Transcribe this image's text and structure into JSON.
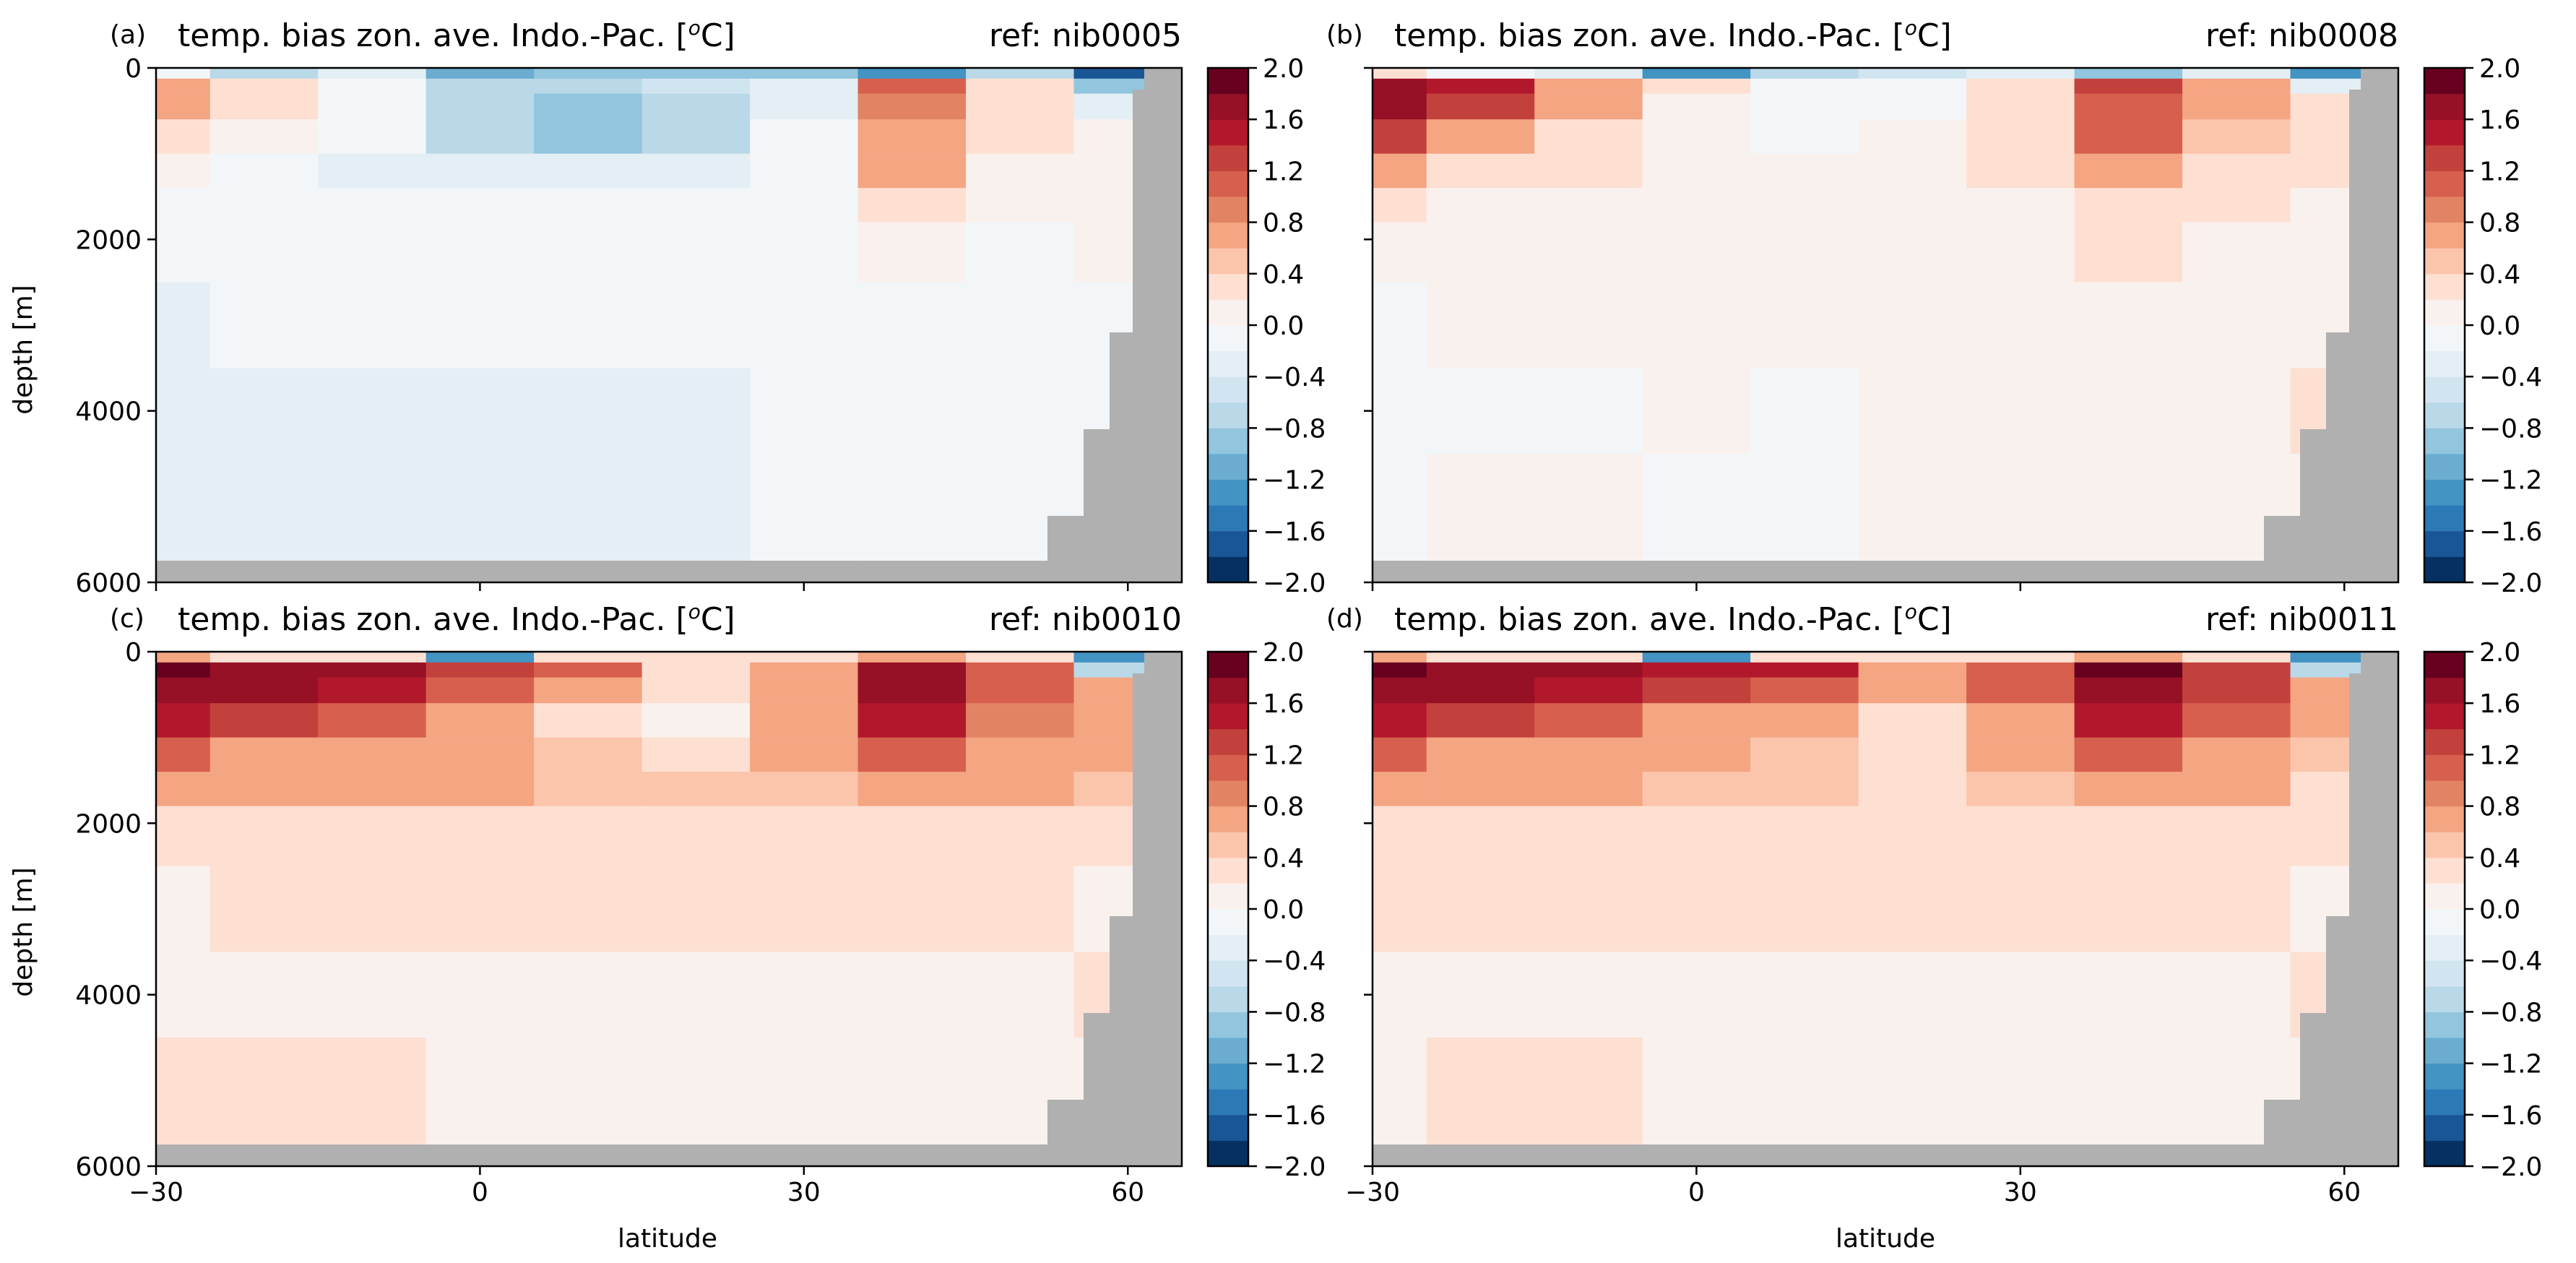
{
  "figure": {
    "ylabel": "depth [m]",
    "xlabel": "latitude"
  },
  "chart_data": [
    {
      "type": "heatmap",
      "panel_label": "(a)",
      "title": "temp. bias zon. ave. Indo.-Pac. [$^o$C]",
      "title_main": "temp. bias zon. ave. Indo.-Pac. [",
      "title_sup": "o",
      "title_end": "C]",
      "ref_text": "ref: nib0005",
      "xlim": [
        -30,
        65
      ],
      "ylim": [
        6000,
        0
      ],
      "xticks": [
        -30,
        0,
        30,
        60
      ],
      "yticks": [
        0,
        2000,
        4000,
        6000
      ],
      "colorbar_ticks": [
        "2.0",
        "1.6",
        "1.2",
        "0.8",
        "0.4",
        "0.0",
        "-0.4",
        "-0.8",
        "-1.2",
        "-1.6",
        "-2.0"
      ],
      "depth_levels": [
        50,
        200,
        400,
        800,
        1200,
        1600,
        2000,
        3000,
        4000,
        5000
      ],
      "lat_bins": [
        -30,
        -20,
        -10,
        0,
        10,
        20,
        30,
        40,
        50,
        60
      ],
      "values": [
        [
          -0.2,
          -0.6,
          -0.4,
          -1.2,
          -0.8,
          -1.0,
          -0.8,
          -1.4,
          -0.6,
          -1.6
        ],
        [
          0.8,
          0.4,
          -0.2,
          -0.6,
          -0.6,
          -0.5,
          -0.4,
          1.0,
          0.2,
          -0.8
        ],
        [
          0.6,
          0.3,
          -0.2,
          -0.6,
          -0.8,
          -0.6,
          -0.3,
          0.9,
          0.2,
          -0.3
        ],
        [
          0.3,
          0.0,
          -0.2,
          -0.6,
          -0.8,
          -0.6,
          -0.2,
          0.8,
          0.2,
          0.1
        ],
        [
          0.1,
          -0.2,
          -0.3,
          -0.4,
          -0.4,
          -0.4,
          -0.2,
          0.6,
          0.1,
          0.1
        ],
        [
          -0.1,
          -0.2,
          -0.2,
          -0.2,
          -0.2,
          -0.2,
          -0.1,
          0.3,
          0.1,
          0.1
        ],
        [
          -0.2,
          -0.1,
          -0.1,
          -0.1,
          -0.1,
          -0.1,
          -0.1,
          0.1,
          -0.1,
          0.0
        ],
        [
          -0.3,
          -0.2,
          -0.1,
          -0.1,
          -0.1,
          -0.1,
          -0.1,
          -0.1,
          -0.1,
          -0.1
        ],
        [
          -0.4,
          -0.4,
          -0.3,
          -0.3,
          -0.3,
          -0.3,
          -0.2,
          -0.2,
          -0.2,
          -0.1
        ],
        [
          -0.4,
          -0.3,
          -0.3,
          -0.4,
          -0.3,
          -0.3,
          -0.2,
          -0.2,
          -0.2,
          -0.2
        ]
      ]
    },
    {
      "type": "heatmap",
      "panel_label": "(b)",
      "title": "temp. bias zon. ave. Indo.-Pac. [$^o$C]",
      "title_main": "temp. bias zon. ave. Indo.-Pac. [",
      "title_sup": "o",
      "title_end": "C]",
      "ref_text": "ref: nib0008",
      "xlim": [
        -30,
        65
      ],
      "ylim": [
        6000,
        0
      ],
      "xticks": [
        -30,
        0,
        30,
        60
      ],
      "yticks": [
        0,
        2000,
        4000,
        6000
      ],
      "colorbar_ticks": [
        "2.0",
        "1.6",
        "1.2",
        "0.8",
        "0.4",
        "0.0",
        "-0.4",
        "-0.8",
        "-1.2",
        "-1.6",
        "-2.0"
      ],
      "depth_levels": [
        50,
        200,
        400,
        800,
        1200,
        1600,
        2000,
        3000,
        4000,
        5000
      ],
      "lat_bins": [
        -30,
        -20,
        -10,
        0,
        10,
        20,
        30,
        40,
        50,
        60
      ],
      "values": [
        [
          0.4,
          -0.2,
          -0.4,
          -1.4,
          -0.6,
          -0.5,
          -0.4,
          -0.8,
          -0.3,
          -1.4
        ],
        [
          1.8,
          1.4,
          0.8,
          0.2,
          -0.1,
          -0.1,
          0.2,
          1.2,
          0.6,
          -0.4
        ],
        [
          1.6,
          1.2,
          0.6,
          0.1,
          -0.2,
          -0.1,
          0.3,
          1.1,
          0.6,
          0.2
        ],
        [
          1.2,
          0.8,
          0.4,
          0.1,
          -0.1,
          0.0,
          0.3,
          1.0,
          0.5,
          0.3
        ],
        [
          0.6,
          0.3,
          0.2,
          0.1,
          0.0,
          0.1,
          0.2,
          0.8,
          0.4,
          0.2
        ],
        [
          0.3,
          0.1,
          0.1,
          0.1,
          0.1,
          0.1,
          0.1,
          0.4,
          0.2,
          0.1
        ],
        [
          0.1,
          0.1,
          0.1,
          0.1,
          0.1,
          0.1,
          0.1,
          0.2,
          0.1,
          0.1
        ],
        [
          -0.1,
          0.0,
          0.1,
          0.1,
          0.1,
          0.1,
          0.1,
          0.1,
          0.1,
          0.1
        ],
        [
          -0.1,
          -0.1,
          -0.1,
          0.0,
          -0.1,
          0.0,
          0.1,
          0.1,
          0.1,
          0.2
        ],
        [
          -0.1,
          0.1,
          0.1,
          -0.1,
          -0.1,
          0.0,
          0.0,
          0.0,
          0.1,
          0.1
        ]
      ]
    },
    {
      "type": "heatmap",
      "panel_label": "(c)",
      "title": "temp. bias zon. ave. Indo.-Pac. [$^o$C]",
      "title_main": "temp. bias zon. ave. Indo.-Pac. [",
      "title_sup": "o",
      "title_end": "C]",
      "ref_text": "ref: nib0010",
      "xlim": [
        -30,
        65
      ],
      "ylim": [
        6000,
        0
      ],
      "xticks": [
        -30,
        0,
        30,
        60
      ],
      "yticks": [
        0,
        2000,
        4000,
        6000
      ],
      "colorbar_ticks": [
        "2.0",
        "1.6",
        "1.2",
        "0.8",
        "0.4",
        "0.0",
        "-0.4",
        "-0.8",
        "-1.2",
        "-1.6",
        "-2.0"
      ],
      "depth_levels": [
        50,
        200,
        400,
        800,
        1200,
        1600,
        2000,
        3000,
        4000,
        5000
      ],
      "lat_bins": [
        -30,
        -20,
        -10,
        0,
        10,
        20,
        30,
        40,
        50,
        60
      ],
      "values": [
        [
          0.6,
          0.4,
          0.2,
          -1.4,
          0.4,
          0.2,
          0.2,
          0.6,
          0.4,
          -1.4
        ],
        [
          2.0,
          1.8,
          1.6,
          1.2,
          1.0,
          0.4,
          0.8,
          1.8,
          1.0,
          -0.6
        ],
        [
          1.8,
          1.6,
          1.4,
          1.0,
          0.6,
          0.2,
          0.8,
          1.8,
          1.0,
          0.6
        ],
        [
          1.4,
          1.2,
          1.0,
          0.8,
          0.4,
          0.0,
          0.7,
          1.4,
          0.9,
          0.6
        ],
        [
          1.0,
          0.8,
          0.8,
          0.7,
          0.5,
          0.4,
          0.6,
          1.0,
          0.7,
          0.6
        ],
        [
          0.7,
          0.7,
          0.6,
          0.6,
          0.5,
          0.5,
          0.5,
          0.7,
          0.6,
          0.5
        ],
        [
          0.4,
          0.4,
          0.4,
          0.4,
          0.4,
          0.4,
          0.4,
          0.4,
          0.4,
          0.3
        ],
        [
          0.1,
          0.2,
          0.2,
          0.2,
          0.2,
          0.2,
          0.2,
          0.2,
          0.2,
          0.1
        ],
        [
          0.1,
          0.1,
          0.1,
          0.1,
          0.1,
          0.1,
          0.1,
          0.1,
          0.1,
          0.3
        ],
        [
          0.2,
          0.3,
          0.3,
          0.1,
          0.1,
          0.1,
          0.1,
          0.0,
          0.1,
          0.1
        ]
      ]
    },
    {
      "type": "heatmap",
      "panel_label": "(d)",
      "title": "temp. bias zon. ave. Indo.-Pac. [$^o$C]",
      "title_main": "temp. bias zon. ave. Indo.-Pac. [",
      "title_sup": "o",
      "title_end": "C]",
      "ref_text": "ref: nib0011",
      "xlim": [
        -30,
        65
      ],
      "ylim": [
        6000,
        0
      ],
      "xticks": [
        -30,
        0,
        30,
        60
      ],
      "yticks": [
        0,
        2000,
        4000,
        6000
      ],
      "colorbar_ticks": [
        "2.0",
        "1.6",
        "1.2",
        "0.8",
        "0.4",
        "0.0",
        "-0.4",
        "-0.8",
        "-1.2",
        "-1.6",
        "-2.0"
      ],
      "depth_levels": [
        50,
        200,
        400,
        800,
        1200,
        1600,
        2000,
        3000,
        4000,
        5000
      ],
      "lat_bins": [
        -30,
        -20,
        -10,
        0,
        10,
        20,
        30,
        40,
        50,
        60
      ],
      "values": [
        [
          0.6,
          0.4,
          0.2,
          -1.4,
          0.4,
          0.4,
          0.2,
          0.8,
          0.4,
          -1.4
        ],
        [
          2.0,
          1.8,
          1.6,
          1.4,
          1.4,
          0.8,
          1.0,
          2.0,
          1.2,
          -0.6
        ],
        [
          1.8,
          1.6,
          1.4,
          1.2,
          1.0,
          0.6,
          1.0,
          1.8,
          1.2,
          0.6
        ],
        [
          1.4,
          1.2,
          1.0,
          0.8,
          0.6,
          0.4,
          0.8,
          1.4,
          1.0,
          0.6
        ],
        [
          1.0,
          0.8,
          0.8,
          0.6,
          0.5,
          0.4,
          0.6,
          1.0,
          0.7,
          0.5
        ],
        [
          0.7,
          0.6,
          0.6,
          0.5,
          0.5,
          0.4,
          0.5,
          0.7,
          0.6,
          0.4
        ],
        [
          0.4,
          0.4,
          0.4,
          0.4,
          0.4,
          0.4,
          0.4,
          0.4,
          0.4,
          0.3
        ],
        [
          0.2,
          0.2,
          0.2,
          0.2,
          0.2,
          0.2,
          0.2,
          0.2,
          0.2,
          0.1
        ],
        [
          0.1,
          0.1,
          0.1,
          0.1,
          0.1,
          0.1,
          0.1,
          0.1,
          0.1,
          0.3
        ],
        [
          0.1,
          0.2,
          0.2,
          0.1,
          0.1,
          0.1,
          0.1,
          0.1,
          0.1,
          0.1
        ]
      ]
    }
  ],
  "colors": {
    "land_mask": "#b0b0b0",
    "colormap": [
      "#053061",
      "#195696",
      "#2c79b6",
      "#4393c3",
      "#6bacd0",
      "#92c5de",
      "#b9d8e8",
      "#d1e5f0",
      "#e4eef5",
      "#f3f6f8",
      "#f9f1ee",
      "#fde0d2",
      "#fbc5ab",
      "#f4a582",
      "#e38365",
      "#d6604d",
      "#c3413d",
      "#b2182b",
      "#961026",
      "#67001f"
    ]
  }
}
